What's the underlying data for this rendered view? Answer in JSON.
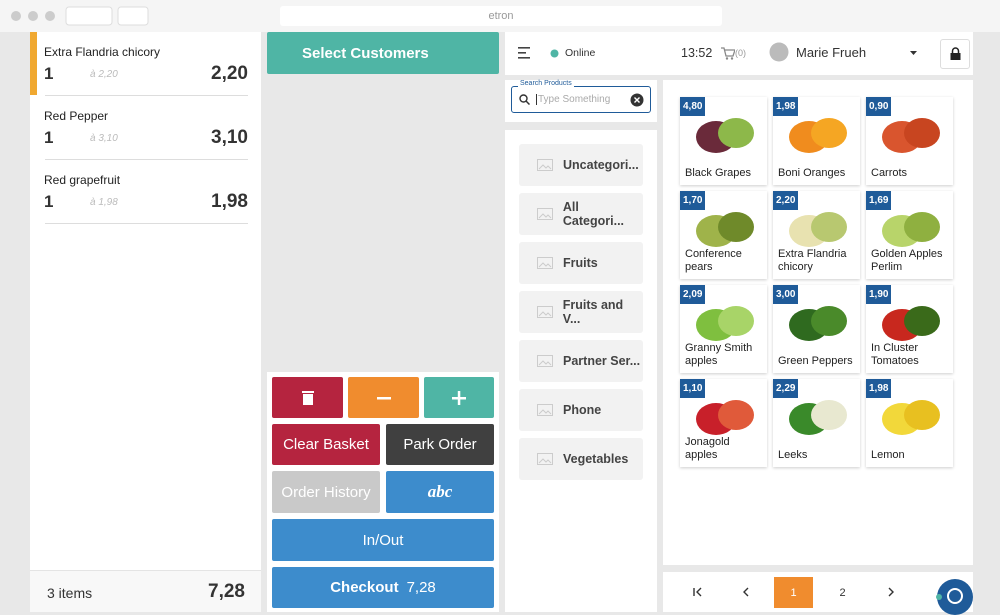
{
  "browser": {
    "url": "etron"
  },
  "cart": {
    "lines": [
      {
        "name": "Extra Flandria chicory",
        "qty": "1",
        "unit": "à 2,20",
        "total": "2,20"
      },
      {
        "name": "Red Pepper",
        "qty": "1",
        "unit": "à 3,10",
        "total": "3,10"
      },
      {
        "name": "Red grapefruit",
        "qty": "1",
        "unit": "à 1,98",
        "total": "1,98"
      }
    ],
    "count": "3 items",
    "total": "7,28"
  },
  "customer_button": "Select Customers",
  "keypad": {
    "clear": "Clear Basket",
    "park": "Park Order",
    "history": "Order History",
    "abc": "abc",
    "inout": "In/Out",
    "checkout": "Checkout",
    "checkout_total": "7,28"
  },
  "topbar": {
    "status": "Online",
    "time": "13:52",
    "cart_count": "(0)",
    "user": "Marie Frueh"
  },
  "search": {
    "label": "Search Products",
    "placeholder": "Type Something"
  },
  "categories": [
    "Uncategori...",
    "All Categori...",
    "Fruits",
    "Fruits and V...",
    "Partner Ser...",
    "Phone",
    "Vegetables"
  ],
  "products": [
    {
      "price": "4,80",
      "name": "Black Grapes"
    },
    {
      "price": "1,98",
      "name": "Boni Oranges"
    },
    {
      "price": "0,90",
      "name": "Carrots"
    },
    {
      "price": "1,70",
      "name": "Conference pears"
    },
    {
      "price": "2,20",
      "name": "Extra Flandria chicory"
    },
    {
      "price": "1,69",
      "name": "Golden Apples Perlim"
    },
    {
      "price": "2,09",
      "name": "Granny Smith apples"
    },
    {
      "price": "3,00",
      "name": "Green Peppers"
    },
    {
      "price": "1,90",
      "name": "In Cluster Tomatoes"
    },
    {
      "price": "1,10",
      "name": "Jonagold apples"
    },
    {
      "price": "2,29",
      "name": "Leeks"
    },
    {
      "price": "1,98",
      "name": "Lemon"
    }
  ],
  "pagination": [
    "1",
    "2"
  ]
}
